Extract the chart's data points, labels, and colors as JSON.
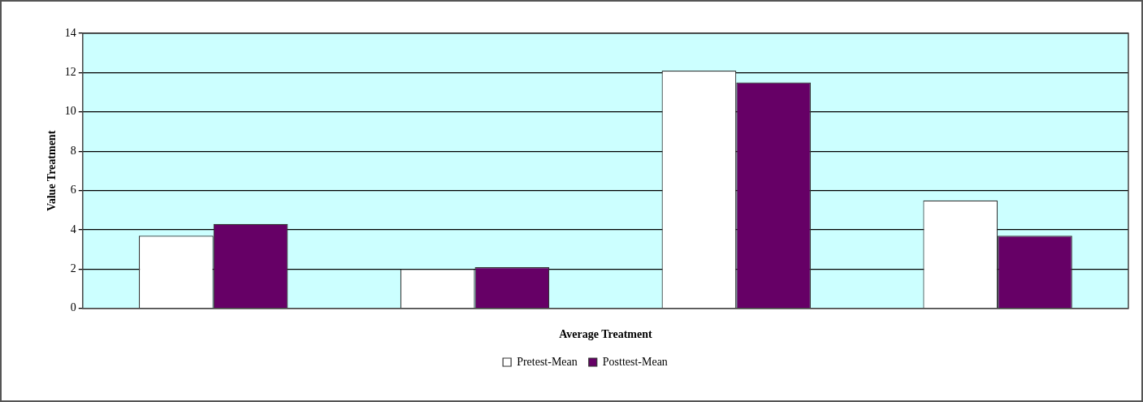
{
  "chart_data": {
    "type": "bar",
    "xlabel": "Average Treatment",
    "ylabel": "Value Treatment",
    "categories": [
      null,
      null,
      null,
      null
    ],
    "series": [
      {
        "name": "Pretest-Mean",
        "color": "#ffffff",
        "values": [
          3.7,
          2.0,
          12.1,
          5.5
        ]
      },
      {
        "name": "Posttest-Mean",
        "color": "#660066",
        "values": [
          4.3,
          2.1,
          11.5,
          3.7
        ]
      }
    ],
    "ylim": [
      0,
      14
    ],
    "yticks": [
      0,
      2,
      4,
      6,
      8,
      10,
      12,
      14
    ],
    "grid": "y",
    "legend": "bottom"
  }
}
